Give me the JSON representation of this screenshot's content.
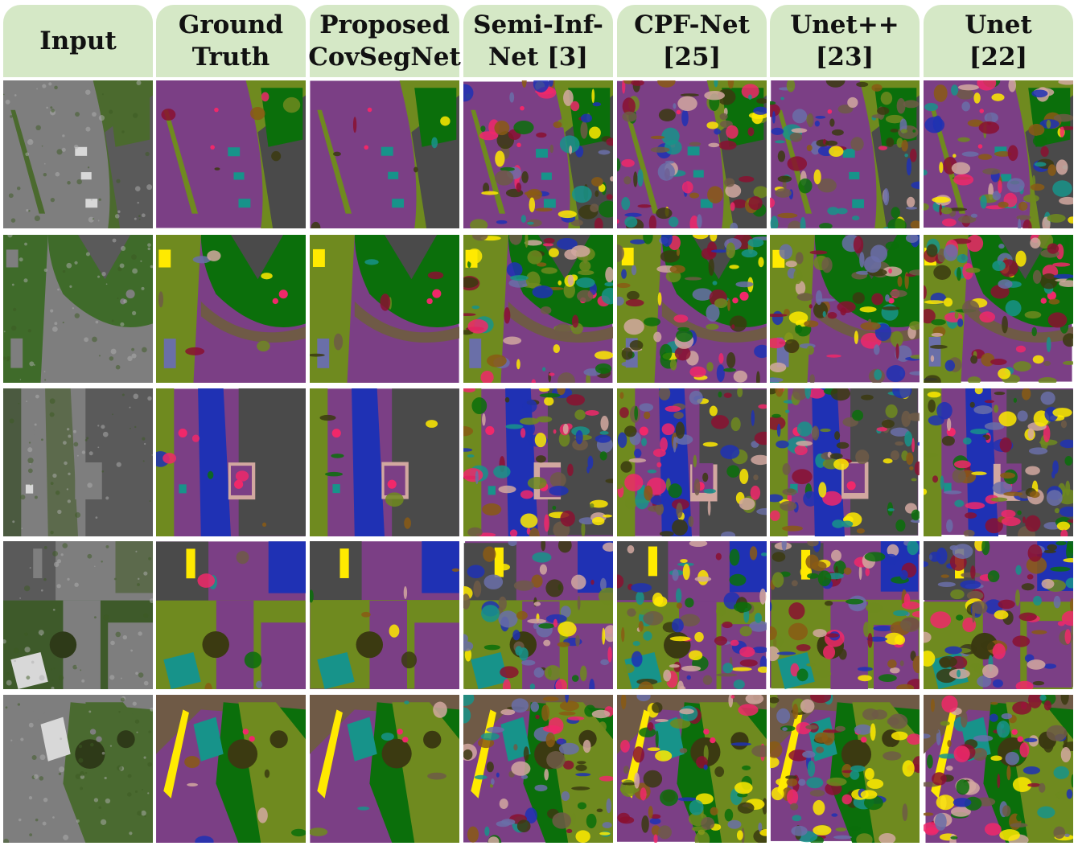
{
  "columns": [
    {
      "label": "Input",
      "kind": "photo"
    },
    {
      "label": "Ground\nTruth",
      "kind": "clean"
    },
    {
      "label": "Proposed\nCovSegNet",
      "kind": "clean"
    },
    {
      "label": "Semi-Inf-\nNet [3]",
      "kind": "noisy"
    },
    {
      "label": "CPF-Net\n[25]",
      "kind": "noisy"
    },
    {
      "label": "Unet++\n[23]",
      "kind": "noisy"
    },
    {
      "label": "Unet\n[22]",
      "kind": "noisy"
    }
  ],
  "rows": 5,
  "palette": {
    "road": "#7b3f85",
    "vegetation": "#6f8a1f",
    "grass": "#0b6f0b",
    "roof": "#4a4a4a",
    "water": "#1f31b4",
    "tree": "#3b3a11",
    "person": "#f0286a",
    "car": "#17938a",
    "dirt": "#6f5a46",
    "gravel": "#6a6fa8",
    "pool": "#ffea00",
    "brown": "#8a5a14",
    "maroon": "#8a1030",
    "pink": "#d2a8a0",
    "orange": "#f08a1c"
  }
}
